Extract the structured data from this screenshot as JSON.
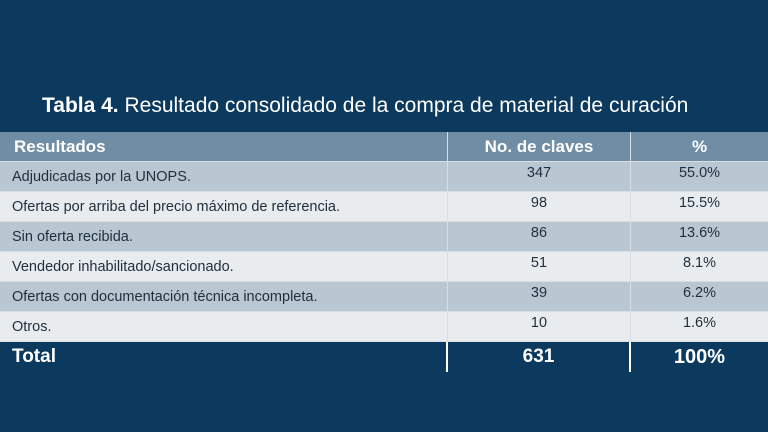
{
  "title": {
    "lead": "Tabla 4.",
    "text": "Resultado consolidado de la compra de material de curación"
  },
  "table": {
    "headers": [
      "Resultados",
      "No. de claves",
      "%"
    ],
    "rows": [
      {
        "resultado": "Adjudicadas por la UNOPS.",
        "claves": "347",
        "pct": "55.0%"
      },
      {
        "resultado": "Ofertas por arriba del precio máximo de referencia.",
        "claves": "98",
        "pct": "15.5%"
      },
      {
        "resultado": "Sin oferta recibida.",
        "claves": "86",
        "pct": "13.6%"
      },
      {
        "resultado": "Vendedor inhabilitado/sancionado.",
        "claves": "51",
        "pct": "8.1%"
      },
      {
        "resultado": "Ofertas con documentación técnica incompleta.",
        "claves": "39",
        "pct": "6.2%"
      },
      {
        "resultado": "Otros.",
        "claves": "10",
        "pct": "1.6%"
      }
    ],
    "total": {
      "label": "Total",
      "claves": "631",
      "pct": "100%"
    }
  }
}
